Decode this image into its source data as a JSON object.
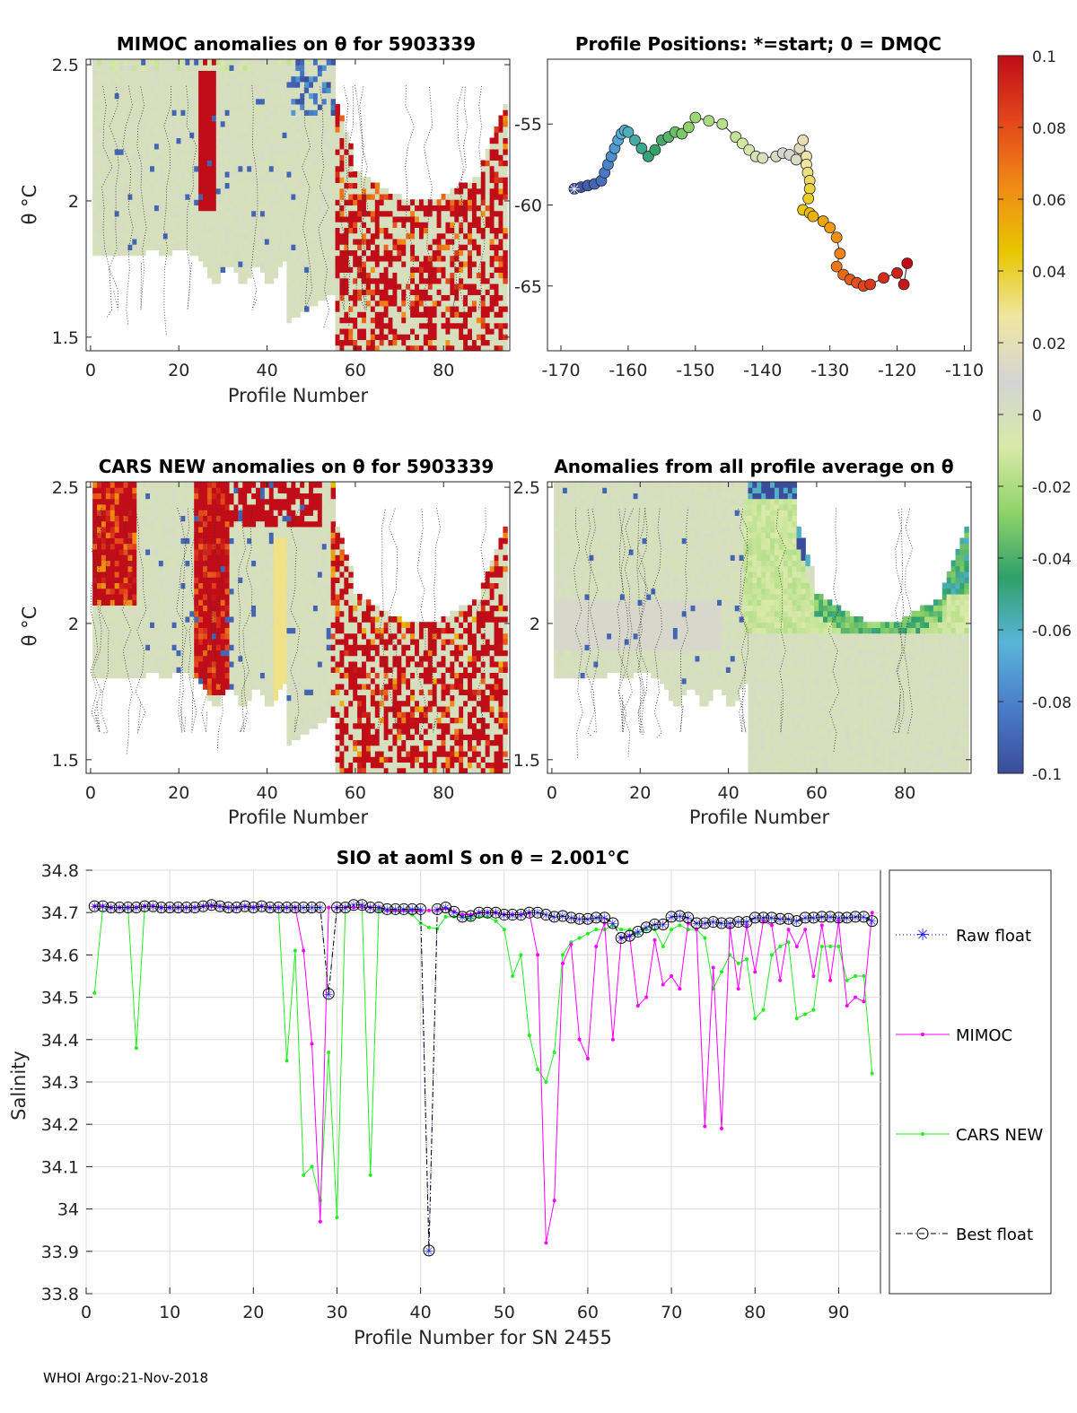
{
  "colormap": {
    "min": -0.1,
    "max": 0.1,
    "stops": [
      "#3a4c9a",
      "#4a7cc9",
      "#5ab4d9",
      "#2fa06a",
      "#8fd36a",
      "#d8e9a8",
      "#d4d4d4",
      "#efe6a0",
      "#e7c600",
      "#f08a16",
      "#e3461c",
      "#c00d18"
    ],
    "tick_labels": [
      "0.1",
      "0.08",
      "0.06",
      "0.04",
      "0.02",
      "0",
      "-0.02",
      "-0.04",
      "-0.06",
      "-0.08",
      "-0.1"
    ]
  },
  "chart_data": [
    {
      "id": "mimoc_anom",
      "type": "heatmap",
      "title": "MIMOC anomalies on θ  for 5903339",
      "xlabel": "Profile Number",
      "ylabel": "θ °C",
      "xlim": [
        -1,
        95
      ],
      "ylim": [
        1.45,
        2.52
      ],
      "xticks": [
        "0",
        "20",
        "40",
        "60",
        "80"
      ],
      "yticks": [
        "2.5",
        "2",
        "1.5"
      ]
    },
    {
      "id": "positions",
      "type": "scatter",
      "title": "Profile Positions: *=start; 0 = DMQC",
      "xlim": [
        -172,
        -109
      ],
      "ylim": [
        -69,
        -51
      ],
      "xticks": [
        "-170",
        "-160",
        "-150",
        "-140",
        "-130",
        "-120",
        "-110"
      ],
      "yticks": [
        "-55",
        "-60",
        "-65"
      ],
      "lon": [
        -168,
        -167,
        -166,
        -165,
        -164,
        -163.5,
        -163,
        -162.5,
        -162,
        -161.5,
        -161,
        -160.5,
        -160,
        -159,
        -158,
        -157,
        -156,
        -155,
        -154,
        -153,
        -152,
        -151,
        -150,
        -148,
        -146,
        -144,
        -143,
        -142,
        -141,
        -140,
        -138,
        -137,
        -136,
        -135,
        -134.5,
        -134,
        -133.5,
        -133.5,
        -133.3,
        -133,
        -133,
        -133.2,
        -134,
        -133,
        -132.5,
        -131,
        -130,
        -129,
        -128.5,
        -129,
        -128,
        -127,
        -126,
        -125,
        -124,
        -122,
        -120,
        -119,
        -118.5
      ],
      "lat": [
        -59.0,
        -58.9,
        -58.8,
        -58.7,
        -58.5,
        -58.0,
        -57.5,
        -57.0,
        -56.5,
        -56.0,
        -55.6,
        -55.4,
        -55.5,
        -56.0,
        -56.5,
        -57.0,
        -56.6,
        -56.0,
        -55.8,
        -55.5,
        -55.6,
        -55.2,
        -54.6,
        -54.8,
        -55.0,
        -55.8,
        -56.2,
        -56.6,
        -57.0,
        -57.1,
        -57.0,
        -56.8,
        -56.9,
        -57.2,
        -56.5,
        -56.0,
        -57.0,
        -57.5,
        -58.0,
        -58.5,
        -59.0,
        -59.6,
        -60.3,
        -60.5,
        -60.7,
        -61.0,
        -61.4,
        -62.0,
        -63.0,
        -63.8,
        -64.3,
        -64.6,
        -64.8,
        -65.0,
        -64.9,
        -64.5,
        -64.2,
        -64.9,
        -63.6
      ]
    },
    {
      "id": "cars_anom",
      "type": "heatmap",
      "title": "CARS NEW anomalies on θ for 5903339",
      "xlabel": "Profile Number",
      "ylabel": "θ °C",
      "xlim": [
        -1,
        95
      ],
      "ylim": [
        1.45,
        2.52
      ],
      "xticks": [
        "0",
        "20",
        "40",
        "60",
        "80"
      ],
      "yticks": [
        "2.5",
        "2",
        "1.5"
      ]
    },
    {
      "id": "avg_anom",
      "type": "heatmap",
      "title": "Anomalies from all profile average on θ",
      "xlabel": "Profile Number",
      "xlim": [
        -1,
        95
      ],
      "ylim": [
        1.45,
        2.52
      ],
      "xticks": [
        "0",
        "20",
        "40",
        "60",
        "80"
      ],
      "yticks": [
        "2.5",
        "2",
        "1.5"
      ]
    },
    {
      "id": "salinity",
      "type": "line",
      "title": "SIO at aoml S on θ = 2.001°C",
      "xlabel": "Profile Number for SN 2455",
      "ylabel": "Salinity",
      "xlim": [
        0,
        95
      ],
      "ylim": [
        33.8,
        34.8
      ],
      "xticks": [
        "0",
        "10",
        "20",
        "30",
        "40",
        "50",
        "60",
        "70",
        "80",
        "90"
      ],
      "yticks": [
        "34.8",
        "34.7",
        "34.6",
        "34.5",
        "34.4",
        "34.3",
        "34.2",
        "34.1",
        "34",
        "33.9",
        "33.8"
      ],
      "series": [
        {
          "name": "Raw float",
          "color": "#1a1aff",
          "x": [
            1,
            2,
            3,
            4,
            5,
            6,
            7,
            8,
            9,
            10,
            11,
            12,
            13,
            14,
            15,
            16,
            17,
            18,
            19,
            20,
            21,
            22,
            23,
            24,
            25,
            26,
            27,
            28,
            29,
            30,
            31,
            32,
            33,
            34,
            35,
            36,
            37,
            38,
            39,
            40,
            41,
            42,
            43,
            44,
            45,
            46,
            47,
            48,
            49,
            50,
            51,
            52,
            53,
            54,
            55,
            56,
            57,
            58,
            59,
            60,
            61,
            62,
            63,
            64,
            65,
            66,
            67,
            68,
            69,
            70,
            71,
            72,
            73,
            74,
            75,
            76,
            77,
            78,
            79,
            80,
            81,
            82,
            83,
            84,
            85,
            86,
            87,
            88,
            89,
            90,
            91,
            92,
            93,
            94
          ],
          "y": [
            34.715,
            34.715,
            34.712,
            34.712,
            34.712,
            34.712,
            34.715,
            34.715,
            34.712,
            34.712,
            34.712,
            34.712,
            34.712,
            34.715,
            34.718,
            34.715,
            34.712,
            34.712,
            34.715,
            34.712,
            34.715,
            34.712,
            34.712,
            34.712,
            34.712,
            34.712,
            34.712,
            34.712,
            34.508,
            34.712,
            34.712,
            34.718,
            34.718,
            34.712,
            34.712,
            34.708,
            34.708,
            34.708,
            34.708,
            34.708,
            33.902,
            34.708,
            34.712,
            34.702,
            34.69,
            34.692,
            34.7,
            34.7,
            34.7,
            34.695,
            34.695,
            34.695,
            34.7,
            34.7,
            34.695,
            34.69,
            34.692,
            34.688,
            34.685,
            34.685,
            34.688,
            34.688,
            34.675,
            34.64,
            34.645,
            34.655,
            34.665,
            34.672,
            34.672,
            34.69,
            34.692,
            34.688,
            34.675,
            34.675,
            34.678,
            34.675,
            34.675,
            34.678,
            34.678,
            34.688,
            34.688,
            34.688,
            34.685,
            34.685,
            34.68,
            34.688,
            34.688,
            34.69,
            34.69,
            34.688,
            34.688,
            34.69,
            34.69,
            34.68
          ]
        },
        {
          "name": "MIMOC",
          "color": "#ff00ff",
          "x": [
            1,
            2,
            3,
            4,
            5,
            6,
            7,
            8,
            9,
            10,
            11,
            12,
            13,
            14,
            15,
            16,
            17,
            18,
            19,
            20,
            21,
            22,
            23,
            24,
            25,
            26,
            27,
            28,
            29,
            30,
            31,
            32,
            33,
            34,
            35,
            36,
            37,
            38,
            39,
            40,
            41,
            42,
            43,
            44,
            45,
            46,
            47,
            48,
            49,
            50,
            51,
            52,
            53,
            54,
            55,
            56,
            57,
            58,
            59,
            60,
            61,
            62,
            63,
            64,
            65,
            66,
            67,
            68,
            69,
            70,
            71,
            72,
            73,
            74,
            75,
            76,
            77,
            78,
            79,
            80,
            81,
            82,
            83,
            84,
            85,
            86,
            87,
            88,
            89,
            90,
            91,
            92,
            93,
            94
          ],
          "y": [
            34.715,
            34.715,
            34.712,
            34.712,
            34.712,
            34.712,
            34.715,
            34.715,
            34.712,
            34.712,
            34.712,
            34.712,
            34.712,
            34.715,
            34.715,
            34.715,
            34.712,
            34.712,
            34.715,
            34.712,
            34.715,
            34.712,
            34.712,
            34.712,
            34.712,
            34.61,
            34.39,
            33.97,
            34.712,
            34.712,
            34.712,
            34.712,
            34.712,
            34.712,
            34.712,
            34.705,
            34.705,
            34.705,
            34.705,
            34.705,
            34.705,
            34.705,
            34.71,
            34.702,
            34.695,
            34.695,
            34.7,
            34.7,
            34.7,
            34.695,
            34.695,
            34.695,
            34.7,
            34.6,
            33.92,
            34.02,
            34.58,
            34.625,
            34.4,
            34.355,
            34.62,
            34.675,
            34.4,
            34.64,
            34.645,
            34.48,
            34.5,
            34.635,
            34.53,
            34.55,
            34.52,
            34.675,
            34.66,
            34.195,
            34.57,
            34.19,
            34.665,
            34.52,
            34.67,
            34.56,
            34.68,
            34.67,
            34.54,
            34.66,
            34.62,
            34.66,
            34.55,
            34.67,
            34.54,
            34.68,
            34.48,
            34.5,
            34.49,
            34.7
          ]
        },
        {
          "name": "CARS NEW",
          "color": "#22ee22",
          "x": [
            1,
            2,
            3,
            4,
            5,
            6,
            7,
            8,
            9,
            10,
            11,
            12,
            13,
            14,
            15,
            16,
            17,
            18,
            19,
            20,
            21,
            22,
            23,
            24,
            25,
            26,
            27,
            28,
            29,
            30,
            31,
            32,
            33,
            34,
            35,
            36,
            37,
            38,
            39,
            40,
            41,
            42,
            43,
            44,
            45,
            46,
            47,
            48,
            49,
            50,
            51,
            52,
            53,
            54,
            55,
            56,
            57,
            58,
            59,
            60,
            61,
            62,
            63,
            64,
            65,
            66,
            67,
            68,
            69,
            70,
            71,
            72,
            73,
            74,
            75,
            76,
            77,
            78,
            79,
            80,
            81,
            82,
            83,
            84,
            85,
            86,
            87,
            88,
            89,
            90,
            91,
            92,
            93,
            94
          ],
          "y": [
            34.51,
            34.715,
            34.712,
            34.712,
            34.712,
            34.38,
            34.715,
            34.715,
            34.712,
            34.712,
            34.712,
            34.712,
            34.712,
            34.715,
            34.715,
            34.715,
            34.712,
            34.712,
            34.715,
            34.712,
            34.715,
            34.712,
            34.712,
            34.35,
            34.61,
            34.08,
            34.1,
            34.02,
            34.37,
            33.98,
            34.712,
            34.712,
            34.712,
            34.08,
            34.705,
            34.705,
            34.705,
            34.705,
            34.695,
            34.675,
            34.665,
            34.662,
            34.69,
            34.69,
            34.69,
            34.685,
            34.69,
            34.69,
            34.68,
            34.66,
            34.55,
            34.6,
            34.41,
            34.33,
            34.3,
            34.37,
            34.6,
            34.63,
            34.64,
            34.65,
            34.66,
            34.66,
            34.67,
            34.66,
            34.66,
            34.65,
            34.66,
            34.66,
            34.62,
            34.66,
            34.67,
            34.66,
            34.66,
            34.64,
            34.52,
            34.56,
            34.6,
            34.58,
            34.59,
            34.45,
            34.47,
            34.6,
            34.62,
            34.63,
            34.45,
            34.46,
            34.47,
            34.62,
            34.62,
            34.62,
            34.54,
            34.55,
            34.55,
            34.32
          ]
        },
        {
          "name": "Best float",
          "color": "#000000",
          "x": [
            1,
            2,
            3,
            4,
            5,
            6,
            7,
            8,
            9,
            10,
            11,
            12,
            13,
            14,
            15,
            16,
            17,
            18,
            19,
            20,
            21,
            22,
            23,
            24,
            25,
            26,
            27,
            28,
            29,
            30,
            31,
            32,
            33,
            34,
            35,
            36,
            37,
            38,
            39,
            40,
            41,
            42,
            43,
            44,
            45,
            46,
            47,
            48,
            49,
            50,
            51,
            52,
            53,
            54,
            55,
            56,
            57,
            58,
            59,
            60,
            61,
            62,
            63,
            64,
            65,
            66,
            67,
            68,
            69,
            70,
            71,
            72,
            73,
            74,
            75,
            76,
            77,
            78,
            79,
            80,
            81,
            82,
            83,
            84,
            85,
            86,
            87,
            88,
            89,
            90,
            91,
            92,
            93,
            94
          ],
          "y": [
            34.715,
            34.715,
            34.712,
            34.712,
            34.712,
            34.712,
            34.715,
            34.715,
            34.712,
            34.712,
            34.712,
            34.712,
            34.712,
            34.715,
            34.718,
            34.715,
            34.712,
            34.712,
            34.715,
            34.712,
            34.715,
            34.712,
            34.712,
            34.712,
            34.712,
            34.712,
            34.712,
            34.712,
            34.508,
            34.712,
            34.712,
            34.718,
            34.718,
            34.712,
            34.712,
            34.708,
            34.708,
            34.708,
            34.708,
            34.708,
            33.902,
            34.708,
            34.712,
            34.702,
            34.69,
            34.692,
            34.7,
            34.7,
            34.7,
            34.695,
            34.695,
            34.695,
            34.7,
            34.7,
            34.695,
            34.69,
            34.692,
            34.688,
            34.685,
            34.685,
            34.688,
            34.688,
            34.675,
            34.64,
            34.645,
            34.655,
            34.665,
            34.672,
            34.672,
            34.69,
            34.692,
            34.688,
            34.675,
            34.675,
            34.678,
            34.675,
            34.675,
            34.678,
            34.678,
            34.688,
            34.688,
            34.688,
            34.685,
            34.685,
            34.68,
            34.688,
            34.688,
            34.69,
            34.69,
            34.688,
            34.688,
            34.69,
            34.69,
            34.68
          ]
        }
      ]
    }
  ],
  "legend": {
    "entries": [
      "Raw float",
      "MIMOC",
      "CARS NEW",
      "Best float"
    ]
  },
  "footer": "WHOI Argo:21-Nov-2018"
}
